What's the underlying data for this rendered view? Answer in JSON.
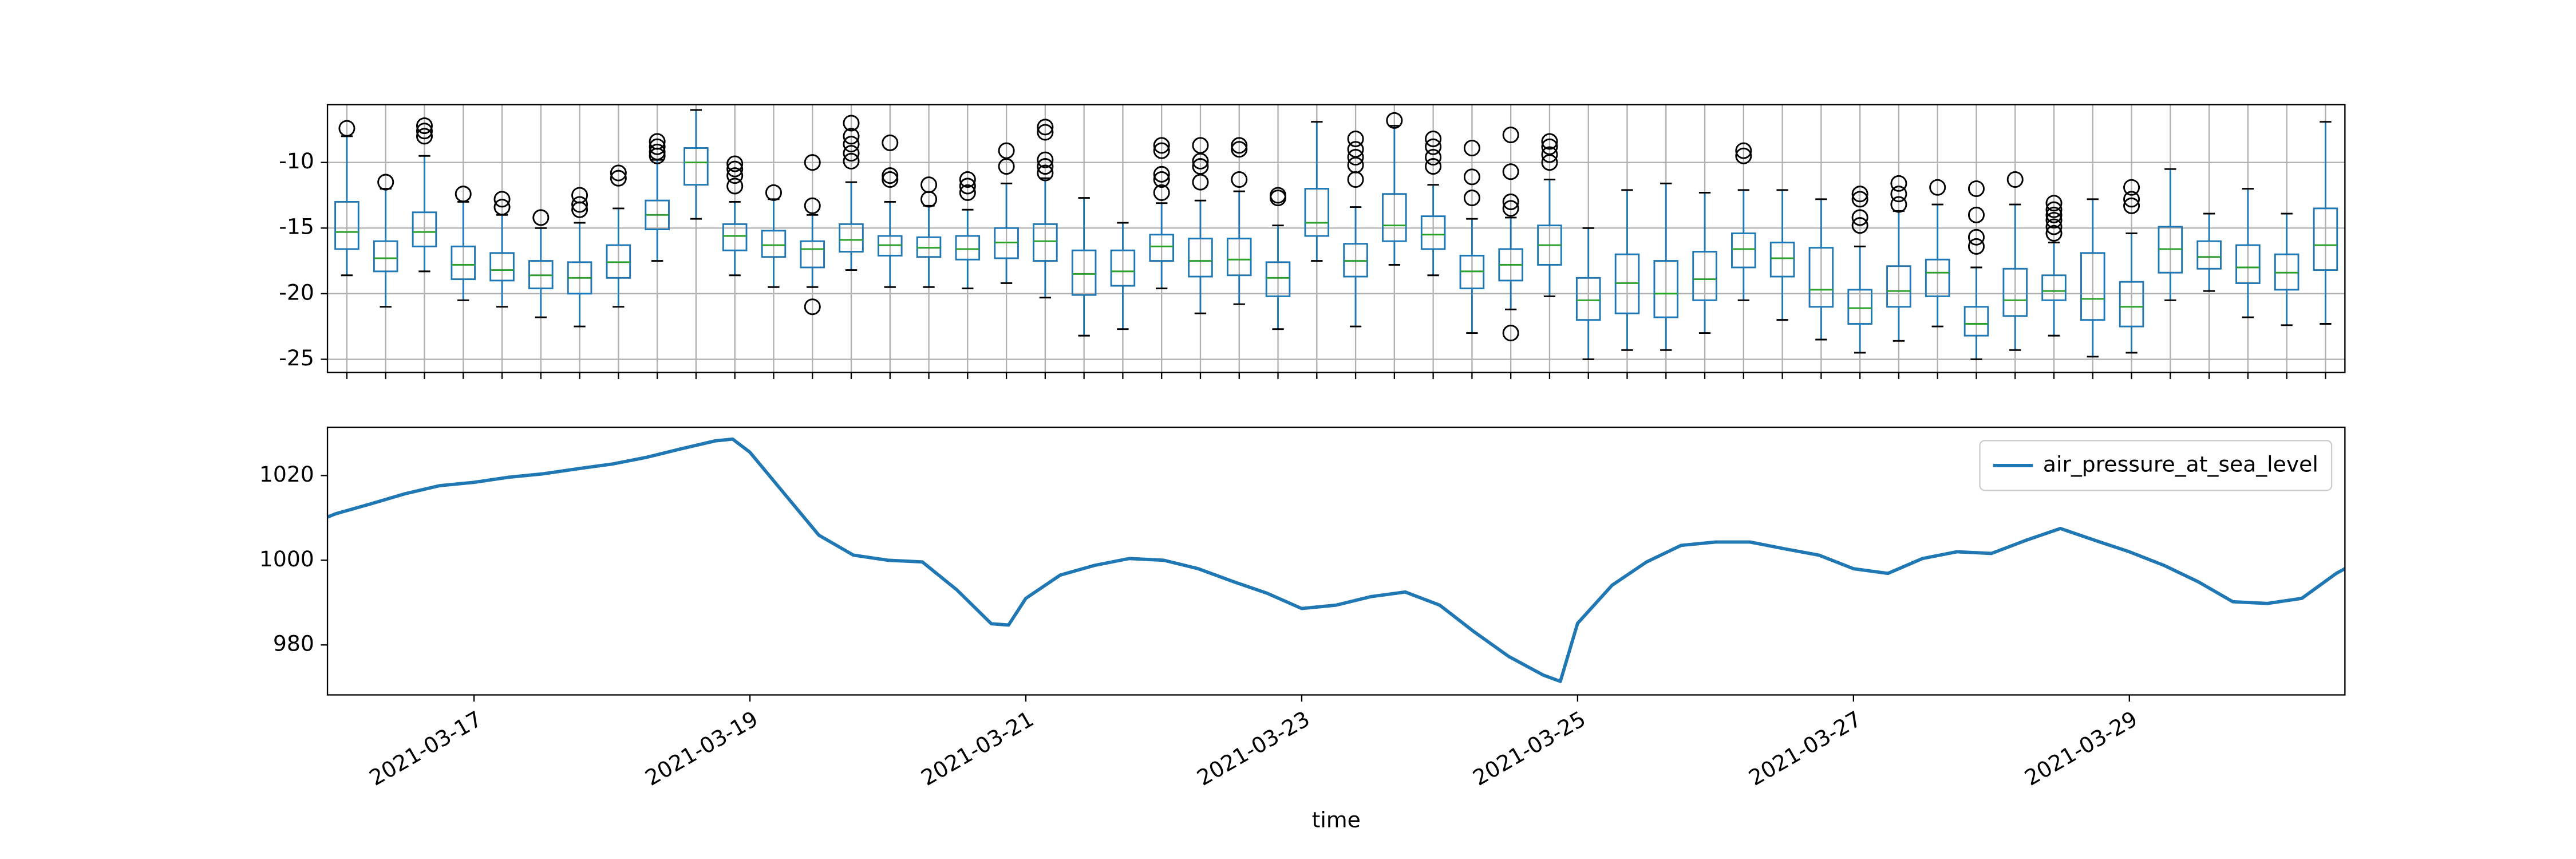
{
  "chart_data": [
    {
      "type": "box",
      "color": "#1f77b4",
      "median_color": "#2ca02c",
      "grid": true,
      "ylim": [
        -26.0,
        -5.6
      ],
      "yticks": [
        -10,
        -15,
        -20,
        -25
      ],
      "boxes": [
        {
          "whislo": -18.6,
          "q1": -16.6,
          "med": -15.3,
          "q3": -13.0,
          "whishi": -8.0,
          "fliers": [
            -7.4
          ]
        },
        {
          "whislo": -21.0,
          "q1": -18.3,
          "med": -17.3,
          "q3": -16.0,
          "whishi": -12.0,
          "fliers": [
            -11.5
          ]
        },
        {
          "whislo": -18.3,
          "q1": -16.4,
          "med": -15.3,
          "q3": -13.8,
          "whishi": -9.5,
          "fliers": [
            -7.2,
            -7.6,
            -8.0
          ]
        },
        {
          "whislo": -20.5,
          "q1": -18.9,
          "med": -17.8,
          "q3": -16.4,
          "whishi": -13.0,
          "fliers": [
            -12.4
          ]
        },
        {
          "whislo": -21.0,
          "q1": -19.0,
          "med": -18.2,
          "q3": -16.9,
          "whishi": -14.0,
          "fliers": [
            -12.8,
            -13.4
          ]
        },
        {
          "whislo": -21.8,
          "q1": -19.6,
          "med": -18.6,
          "q3": -17.5,
          "whishi": -15.0,
          "fliers": [
            -14.2
          ]
        },
        {
          "whislo": -22.5,
          "q1": -20.0,
          "med": -18.8,
          "q3": -17.6,
          "whishi": -14.6,
          "fliers": [
            -12.5,
            -13.2,
            -13.6
          ]
        },
        {
          "whislo": -21.0,
          "q1": -18.8,
          "med": -17.6,
          "q3": -16.3,
          "whishi": -13.5,
          "fliers": [
            -10.8,
            -11.2
          ]
        },
        {
          "whislo": -17.5,
          "q1": -15.1,
          "med": -14.0,
          "q3": -12.9,
          "whishi": -9.8,
          "fliers": [
            -8.4,
            -8.8,
            -9.2,
            -9.5
          ]
        },
        {
          "whislo": -14.3,
          "q1": -11.7,
          "med": -10.0,
          "q3": -8.9,
          "whishi": -6.0,
          "fliers": []
        },
        {
          "whislo": -18.6,
          "q1": -16.7,
          "med": -15.6,
          "q3": -14.7,
          "whishi": -13.0,
          "fliers": [
            -10.1,
            -10.5,
            -11.0,
            -11.8
          ]
        },
        {
          "whislo": -19.5,
          "q1": -17.2,
          "med": -16.3,
          "q3": -15.2,
          "whishi": -12.8,
          "fliers": [
            -12.3
          ]
        },
        {
          "whislo": -19.5,
          "q1": -18.0,
          "med": -16.6,
          "q3": -16.0,
          "whishi": -14.0,
          "fliers": [
            -21.0,
            -13.3,
            -10.0
          ]
        },
        {
          "whislo": -18.2,
          "q1": -16.8,
          "med": -15.9,
          "q3": -14.7,
          "whishi": -11.5,
          "fliers": [
            -7.0,
            -8.0,
            -8.6,
            -9.3,
            -9.9
          ]
        },
        {
          "whislo": -19.5,
          "q1": -17.1,
          "med": -16.3,
          "q3": -15.6,
          "whishi": -13.0,
          "fliers": [
            -8.5,
            -11.0,
            -11.3
          ]
        },
        {
          "whislo": -19.5,
          "q1": -17.2,
          "med": -16.5,
          "q3": -15.7,
          "whishi": -13.3,
          "fliers": [
            -11.7,
            -12.8
          ]
        },
        {
          "whislo": -19.6,
          "q1": -17.4,
          "med": -16.6,
          "q3": -15.6,
          "whishi": -13.6,
          "fliers": [
            -11.3,
            -11.8,
            -12.3
          ]
        },
        {
          "whislo": -19.2,
          "q1": -17.3,
          "med": -16.1,
          "q3": -15.0,
          "whishi": -11.6,
          "fliers": [
            -9.1,
            -10.3
          ]
        },
        {
          "whislo": -20.3,
          "q1": -17.5,
          "med": -16.0,
          "q3": -14.7,
          "whishi": -11.2,
          "fliers": [
            -7.3,
            -7.7,
            -9.8,
            -10.3,
            -10.8
          ]
        },
        {
          "whislo": -23.2,
          "q1": -20.1,
          "med": -18.5,
          "q3": -16.7,
          "whishi": -12.7,
          "fliers": []
        },
        {
          "whislo": -22.7,
          "q1": -19.4,
          "med": -18.3,
          "q3": -16.7,
          "whishi": -14.6,
          "fliers": []
        },
        {
          "whislo": -19.6,
          "q1": -17.5,
          "med": -16.4,
          "q3": -15.5,
          "whishi": -13.1,
          "fliers": [
            -8.7,
            -9.1,
            -10.9,
            -11.3,
            -12.3
          ]
        },
        {
          "whislo": -21.5,
          "q1": -18.7,
          "med": -17.5,
          "q3": -15.8,
          "whishi": -12.9,
          "fliers": [
            -8.7,
            -9.9,
            -10.3,
            -11.5
          ]
        },
        {
          "whislo": -20.8,
          "q1": -18.6,
          "med": -17.4,
          "q3": -15.8,
          "whishi": -12.2,
          "fliers": [
            -8.7,
            -9.0,
            -11.3
          ]
        },
        {
          "whislo": -22.7,
          "q1": -20.2,
          "med": -18.8,
          "q3": -17.6,
          "whishi": -14.8,
          "fliers": [
            -12.5,
            -12.7
          ]
        },
        {
          "whislo": -17.5,
          "q1": -15.6,
          "med": -14.6,
          "q3": -12.0,
          "whishi": -6.9,
          "fliers": []
        },
        {
          "whislo": -22.5,
          "q1": -18.7,
          "med": -17.5,
          "q3": -16.2,
          "whishi": -13.4,
          "fliers": [
            -8.2,
            -9.0,
            -9.6,
            -10.2,
            -11.3
          ]
        },
        {
          "whislo": -17.8,
          "q1": -16.0,
          "med": -14.8,
          "q3": -12.4,
          "whishi": -7.2,
          "fliers": [
            -6.8
          ]
        },
        {
          "whislo": -18.6,
          "q1": -16.6,
          "med": -15.5,
          "q3": -14.1,
          "whishi": -11.7,
          "fliers": [
            -8.2,
            -8.8,
            -9.6,
            -10.3
          ]
        },
        {
          "whislo": -23.0,
          "q1": -19.6,
          "med": -18.3,
          "q3": -17.1,
          "whishi": -14.3,
          "fliers": [
            -8.9,
            -11.1,
            -12.7
          ]
        },
        {
          "whislo": -21.2,
          "q1": -19.0,
          "med": -17.8,
          "q3": -16.6,
          "whishi": -14.2,
          "fliers": [
            -7.9,
            -10.7,
            -13.0,
            -13.5,
            -23.0
          ]
        },
        {
          "whislo": -20.2,
          "q1": -17.8,
          "med": -16.3,
          "q3": -14.8,
          "whishi": -11.3,
          "fliers": [
            -8.4,
            -8.8,
            -9.4,
            -10.0
          ]
        },
        {
          "whislo": -25.0,
          "q1": -22.0,
          "med": -20.5,
          "q3": -18.8,
          "whishi": -15.0,
          "fliers": []
        },
        {
          "whislo": -24.3,
          "q1": -21.5,
          "med": -19.2,
          "q3": -17.0,
          "whishi": -12.1,
          "fliers": []
        },
        {
          "whislo": -24.3,
          "q1": -21.8,
          "med": -20.0,
          "q3": -17.5,
          "whishi": -11.6,
          "fliers": []
        },
        {
          "whislo": -23.0,
          "q1": -20.5,
          "med": -18.9,
          "q3": -16.8,
          "whishi": -12.3,
          "fliers": []
        },
        {
          "whislo": -20.5,
          "q1": -18.0,
          "med": -16.6,
          "q3": -15.4,
          "whishi": -12.1,
          "fliers": [
            -9.1,
            -9.5
          ]
        },
        {
          "whislo": -22.0,
          "q1": -18.7,
          "med": -17.3,
          "q3": -16.1,
          "whishi": -12.1,
          "fliers": []
        },
        {
          "whislo": -23.5,
          "q1": -21.0,
          "med": -19.7,
          "q3": -16.5,
          "whishi": -12.8,
          "fliers": []
        },
        {
          "whislo": -24.5,
          "q1": -22.3,
          "med": -21.1,
          "q3": -19.7,
          "whishi": -16.4,
          "fliers": [
            -12.4,
            -12.8,
            -14.2,
            -14.8
          ]
        },
        {
          "whislo": -23.6,
          "q1": -21.0,
          "med": -19.8,
          "q3": -17.9,
          "whishi": -13.7,
          "fliers": [
            -11.6,
            -12.4,
            -13.2
          ]
        },
        {
          "whislo": -22.5,
          "q1": -20.2,
          "med": -18.4,
          "q3": -17.4,
          "whishi": -13.2,
          "fliers": [
            -11.9
          ]
        },
        {
          "whislo": -25.0,
          "q1": -23.2,
          "med": -22.3,
          "q3": -21.0,
          "whishi": -18.0,
          "fliers": [
            -12.0,
            -14.0,
            -15.7,
            -16.4
          ]
        },
        {
          "whislo": -24.3,
          "q1": -21.7,
          "med": -20.5,
          "q3": -18.1,
          "whishi": -13.2,
          "fliers": [
            -11.3
          ]
        },
        {
          "whislo": -23.2,
          "q1": -20.5,
          "med": -19.8,
          "q3": -18.6,
          "whishi": -16.1,
          "fliers": [
            -13.1,
            -13.6,
            -14.0,
            -14.4,
            -14.9,
            -15.4
          ]
        },
        {
          "whislo": -24.8,
          "q1": -22.0,
          "med": -20.4,
          "q3": -16.9,
          "whishi": -12.8,
          "fliers": []
        },
        {
          "whislo": -24.5,
          "q1": -22.5,
          "med": -21.0,
          "q3": -19.1,
          "whishi": -15.4,
          "fliers": [
            -11.9,
            -12.8,
            -13.3
          ]
        },
        {
          "whislo": -20.5,
          "q1": -18.4,
          "med": -16.6,
          "q3": -14.9,
          "whishi": -10.5,
          "fliers": []
        },
        {
          "whislo": -19.8,
          "q1": -18.1,
          "med": -17.2,
          "q3": -16.0,
          "whishi": -13.9,
          "fliers": []
        },
        {
          "whislo": -21.8,
          "q1": -19.2,
          "med": -18.0,
          "q3": -16.3,
          "whishi": -12.0,
          "fliers": []
        },
        {
          "whislo": -22.4,
          "q1": -19.7,
          "med": -18.4,
          "q3": -17.0,
          "whishi": -13.9,
          "fliers": []
        },
        {
          "whislo": -22.3,
          "q1": -18.2,
          "med": -16.3,
          "q3": -13.5,
          "whishi": -6.9,
          "fliers": []
        }
      ]
    },
    {
      "type": "line",
      "xlabel": "time",
      "legend": "upper right",
      "xlim": [
        "2021-03-15T22:30",
        "2021-03-30T13:30"
      ],
      "xticks": [
        "2021-03-17",
        "2021-03-19",
        "2021-03-21",
        "2021-03-23",
        "2021-03-25",
        "2021-03-27",
        "2021-03-29"
      ],
      "ylim": [
        968.2,
        1031.4
      ],
      "yticks": [
        1020,
        1000,
        980
      ],
      "x": [
        "2021-03-15T22:30",
        "2021-03-16T00:00",
        "2021-03-16T06:00",
        "2021-03-16T12:00",
        "2021-03-16T18:00",
        "2021-03-17T00:00",
        "2021-03-17T06:00",
        "2021-03-17T12:00",
        "2021-03-17T18:00",
        "2021-03-18T00:00",
        "2021-03-18T06:00",
        "2021-03-18T12:00",
        "2021-03-18T18:00",
        "2021-03-18T21:00",
        "2021-03-19T00:00",
        "2021-03-19T06:00",
        "2021-03-19T12:00",
        "2021-03-19T18:00",
        "2021-03-20T00:00",
        "2021-03-20T06:00",
        "2021-03-20T12:00",
        "2021-03-20T18:00",
        "2021-03-20T21:00",
        "2021-03-21T00:00",
        "2021-03-21T06:00",
        "2021-03-21T12:00",
        "2021-03-21T18:00",
        "2021-03-22T00:00",
        "2021-03-22T06:00",
        "2021-03-22T12:00",
        "2021-03-22T18:00",
        "2021-03-23T00:00",
        "2021-03-23T06:00",
        "2021-03-23T12:00",
        "2021-03-23T18:00",
        "2021-03-24T00:00",
        "2021-03-24T06:00",
        "2021-03-24T12:00",
        "2021-03-24T18:00",
        "2021-03-24T21:00",
        "2021-03-25T00:00",
        "2021-03-25T06:00",
        "2021-03-25T12:00",
        "2021-03-25T18:00",
        "2021-03-26T00:00",
        "2021-03-26T06:00",
        "2021-03-26T12:00",
        "2021-03-26T18:00",
        "2021-03-27T00:00",
        "2021-03-27T06:00",
        "2021-03-27T12:00",
        "2021-03-27T18:00",
        "2021-03-28T00:00",
        "2021-03-28T06:00",
        "2021-03-28T12:00",
        "2021-03-28T18:00",
        "2021-03-29T00:00",
        "2021-03-29T06:00",
        "2021-03-29T12:00",
        "2021-03-29T18:00",
        "2021-03-30T00:00",
        "2021-03-30T06:00",
        "2021-03-30T12:00",
        "2021-03-30T13:30"
      ],
      "series": [
        {
          "name": "air_pressure_at_sea_level",
          "color": "#1f77b4",
          "values": [
            1010.2,
            1011.0,
            1013.3,
            1015.7,
            1017.6,
            1018.4,
            1019.6,
            1020.4,
            1021.6,
            1022.7,
            1024.3,
            1026.3,
            1028.2,
            1028.6,
            1025.5,
            1015.7,
            1005.9,
            1001.2,
            1000.0,
            999.6,
            993.0,
            985.0,
            984.7,
            991.0,
            996.5,
            998.8,
            1000.4,
            1000.0,
            998.0,
            995.0,
            992.2,
            988.6,
            989.4,
            991.4,
            992.5,
            989.4,
            983.1,
            977.3,
            972.9,
            971.4,
            985.1,
            994.1,
            999.6,
            1003.5,
            1004.3,
            1004.3,
            1002.7,
            1001.2,
            998.0,
            996.9,
            1000.4,
            1002.0,
            1001.6,
            1004.7,
            1007.5,
            1004.7,
            1002.0,
            998.8,
            994.9,
            990.2,
            989.8,
            991.0,
            996.9,
            998.0
          ]
        }
      ]
    }
  ]
}
